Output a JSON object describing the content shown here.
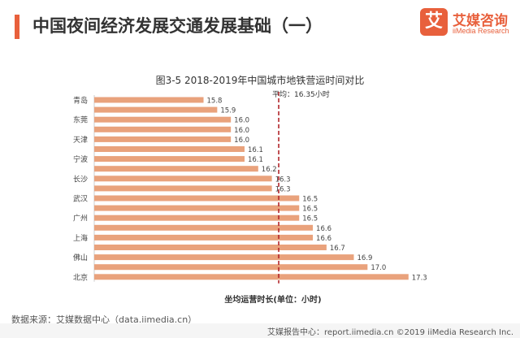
{
  "header": {
    "title": "中国夜间经济发展交通发展基础（一）",
    "logo_mark": "艾",
    "logo_name": "艾媒咨询",
    "logo_en": "iiMedia Research"
  },
  "chart_data": {
    "type": "bar",
    "orientation": "horizontal",
    "title": "图3-5 2018-2019年中国城市地铁营运时间对比",
    "xlabel": "坐均运营时长(单位：小时)",
    "categories": [
      "青岛",
      "",
      "东莞",
      "",
      "天津",
      "",
      "宁波",
      "",
      "长沙",
      "",
      "武汉",
      "",
      "广州",
      "",
      "上海",
      "",
      "佛山",
      "",
      "北京"
    ],
    "values": [
      15.8,
      15.9,
      16.0,
      16.0,
      16.0,
      16.1,
      16.1,
      16.2,
      16.3,
      16.3,
      16.5,
      16.5,
      16.5,
      16.6,
      16.6,
      16.7,
      16.9,
      17.0,
      17.3
    ],
    "value_labels": [
      "15.8",
      "15.9",
      "16.0",
      "16.0",
      "16.0",
      "16.1",
      "16.1",
      "16.2",
      "16.3",
      "16.3",
      "16.5",
      "16.5",
      "16.5",
      "16.6",
      "16.6",
      "16.7",
      "16.9",
      "17.0",
      "17.3"
    ],
    "reference_line": {
      "value": 16.35,
      "label": "平均：16.35小时"
    },
    "bar_color": "#e9a27c",
    "reference_color": "#b2262b",
    "xlim": [
      15.0,
      17.45
    ]
  },
  "footer": {
    "source": "数据来源：艾媒数据中心（data.iimedia.cn）",
    "text": "艾媒报告中心：report.iimedia.cn ©2019 iiMedia Research Inc."
  }
}
